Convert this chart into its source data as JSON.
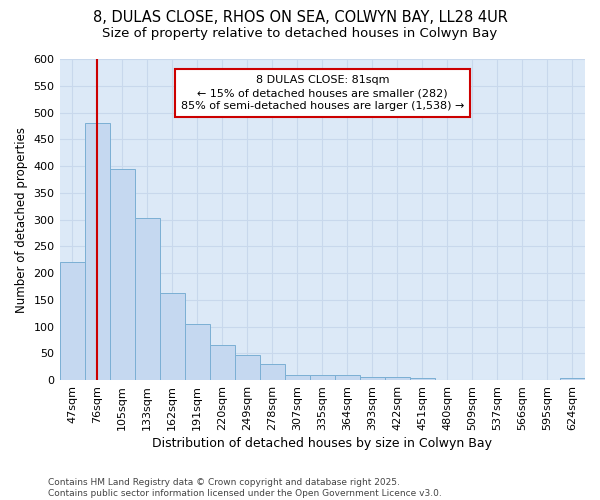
{
  "title": "8, DULAS CLOSE, RHOS ON SEA, COLWYN BAY, LL28 4UR",
  "subtitle": "Size of property relative to detached houses in Colwyn Bay",
  "xlabel": "Distribution of detached houses by size in Colwyn Bay",
  "ylabel": "Number of detached properties",
  "footer": "Contains HM Land Registry data © Crown copyright and database right 2025.\nContains public sector information licensed under the Open Government Licence v3.0.",
  "categories": [
    "47sqm",
    "76sqm",
    "105sqm",
    "133sqm",
    "162sqm",
    "191sqm",
    "220sqm",
    "249sqm",
    "278sqm",
    "307sqm",
    "335sqm",
    "364sqm",
    "393sqm",
    "422sqm",
    "451sqm",
    "480sqm",
    "509sqm",
    "537sqm",
    "566sqm",
    "595sqm",
    "624sqm"
  ],
  "values": [
    220,
    480,
    395,
    302,
    163,
    105,
    65,
    47,
    30,
    10,
    10,
    10,
    5,
    5,
    3,
    1,
    1,
    1,
    0,
    1,
    3
  ],
  "bar_color": "#c5d8f0",
  "bar_edge_color": "#7bafd4",
  "grid_color": "#c8d8ec",
  "background_color": "#ffffff",
  "plot_bg_color": "#dce9f7",
  "annotation_text": "8 DULAS CLOSE: 81sqm\n← 15% of detached houses are smaller (282)\n85% of semi-detached houses are larger (1,538) →",
  "annotation_box_color": "#ffffff",
  "annotation_border_color": "#cc0000",
  "ylim": [
    0,
    600
  ],
  "yticks": [
    0,
    50,
    100,
    150,
    200,
    250,
    300,
    350,
    400,
    450,
    500,
    550,
    600
  ],
  "title_fontsize": 10.5,
  "subtitle_fontsize": 9.5,
  "xlabel_fontsize": 9,
  "ylabel_fontsize": 8.5,
  "tick_fontsize": 8,
  "annotation_fontsize": 8,
  "footer_fontsize": 6.5
}
